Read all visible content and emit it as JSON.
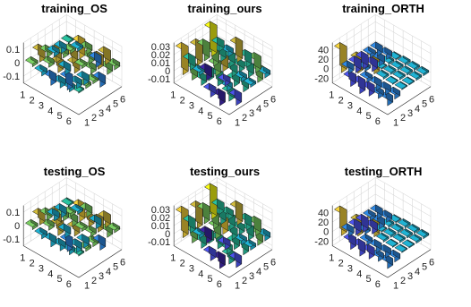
{
  "figure": {
    "rows": 2,
    "cols": 3
  },
  "colormap": [
    "#3e26a8",
    "#4d54f0",
    "#2e8ae6",
    "#1fb3d4",
    "#29c3a0",
    "#7bd063",
    "#d3bd3c",
    "#f6d33a",
    "#f9fb15"
  ],
  "chart_data": [
    {
      "type": "bar3",
      "title": "training_OS",
      "x_ticks": [
        "1",
        "2",
        "3",
        "4",
        "5",
        "6"
      ],
      "y_ticks": [
        "1",
        "2",
        "3",
        "4",
        "5",
        "6"
      ],
      "z_ticks": [
        "0.1",
        "0",
        "-0.1"
      ],
      "z_tick_values": [
        0.1,
        0,
        -0.1
      ],
      "zlim": [
        -0.15,
        0.15
      ],
      "matrix": [
        [
          0.02,
          0.08,
          0.04,
          -0.03,
          -0.04,
          0.01
        ],
        [
          -0.03,
          0.03,
          0.08,
          0.03,
          0.02,
          -0.02
        ],
        [
          -0.06,
          0.07,
          -0.05,
          0.06,
          0.12,
          0.04
        ],
        [
          -0.04,
          -0.09,
          0.07,
          0.02,
          0.05,
          -0.06
        ],
        [
          -0.03,
          -0.04,
          -0.05,
          0.04,
          0.08,
          0.08
        ],
        [
          0.01,
          0.02,
          0.02,
          -0.06,
          0.05,
          0.03
        ]
      ]
    },
    {
      "type": "bar3",
      "title": "training_ours",
      "x_ticks": [
        "1",
        "2",
        "3",
        "4",
        "5",
        "6"
      ],
      "y_ticks": [
        "1",
        "2",
        "3",
        "4",
        "5",
        "6"
      ],
      "z_ticks": [
        "0.03",
        "0.02",
        "0.01",
        "0",
        "-0.01"
      ],
      "z_tick_values": [
        0.03,
        0.02,
        0.01,
        0,
        -0.01
      ],
      "zlim": [
        -0.015,
        0.035
      ],
      "matrix": [
        [
          0.031,
          0.012,
          0.024,
          0.018,
          0.034,
          0.009
        ],
        [
          0.015,
          0.004,
          -0.012,
          0.016,
          0.012,
          0.006
        ],
        [
          0.008,
          0.011,
          0.014,
          0.025,
          0.012,
          0.022
        ],
        [
          -0.008,
          0.013,
          -0.006,
          0.009,
          0.008,
          0.013
        ],
        [
          -0.012,
          0.006,
          0.009,
          0.005,
          0.012,
          0.016
        ],
        [
          0.011,
          -0.011,
          0.012,
          0.003,
          0.016,
          0.005
        ]
      ]
    },
    {
      "type": "bar3",
      "title": "training_ORTH",
      "x_ticks": [
        "1",
        "2",
        "3",
        "4",
        "5",
        "6"
      ],
      "y_ticks": [
        "1",
        "2",
        "3",
        "4",
        "5",
        "6"
      ],
      "z_ticks": [
        "40",
        "20",
        "0",
        "-20"
      ],
      "z_tick_values": [
        40,
        20,
        0,
        -20
      ],
      "zlim": [
        -30,
        55
      ],
      "matrix": [
        [
          48,
          -12,
          -20,
          -22,
          -8,
          -14
        ],
        [
          -18,
          30,
          -6,
          -16,
          -14,
          -10
        ],
        [
          -22,
          -8,
          35,
          2,
          4,
          2
        ],
        [
          -16,
          -14,
          4,
          4,
          4,
          4
        ],
        [
          -10,
          -12,
          2,
          4,
          4,
          4
        ],
        [
          -14,
          -10,
          2,
          2,
          4,
          4
        ]
      ]
    },
    {
      "type": "bar3",
      "title": "testing_OS",
      "x_ticks": [
        "1",
        "2",
        "3",
        "4",
        "5",
        "6"
      ],
      "y_ticks": [
        "1",
        "2",
        "3",
        "4",
        "5",
        "6"
      ],
      "z_ticks": [
        "0.1",
        "0",
        "-0.1"
      ],
      "z_tick_values": [
        0.1,
        0,
        -0.1
      ],
      "zlim": [
        -0.15,
        0.15
      ],
      "matrix": [
        [
          0.02,
          0.07,
          0.04,
          -0.04,
          -0.05,
          0.01
        ],
        [
          -0.03,
          0.03,
          0.09,
          0.04,
          0.02,
          -0.02
        ],
        [
          -0.05,
          0.08,
          -0.05,
          0.05,
          0.11,
          0.05
        ],
        [
          -0.04,
          -0.08,
          0.06,
          0.02,
          0.06,
          -0.05
        ],
        [
          -0.03,
          -0.05,
          -0.05,
          0.03,
          0.08,
          0.07
        ],
        [
          0.01,
          0.02,
          0.03,
          -0.06,
          0.05,
          0.02
        ]
      ]
    },
    {
      "type": "bar3",
      "title": "testing_ours",
      "x_ticks": [
        "1",
        "2",
        "3",
        "4",
        "5",
        "6"
      ],
      "y_ticks": [
        "1",
        "2",
        "3",
        "4",
        "5",
        "6"
      ],
      "z_ticks": [
        "0.03",
        "0.02",
        "0.01",
        "0",
        "-0.01"
      ],
      "z_tick_values": [
        0.03,
        0.02,
        0.01,
        0,
        -0.01
      ],
      "zlim": [
        -0.015,
        0.035
      ],
      "matrix": [
        [
          0.03,
          0.013,
          0.025,
          0.017,
          0.035,
          0.01
        ],
        [
          0.014,
          0.004,
          -0.012,
          0.017,
          0.012,
          0.007
        ],
        [
          0.009,
          0.011,
          0.015,
          0.026,
          0.013,
          0.021
        ],
        [
          -0.009,
          0.012,
          -0.007,
          0.009,
          0.008,
          0.012
        ],
        [
          -0.012,
          0.007,
          0.009,
          0.005,
          0.013,
          0.015
        ],
        [
          0.011,
          -0.01,
          0.012,
          0.004,
          0.015,
          0.006
        ]
      ]
    },
    {
      "type": "bar3",
      "title": "testing_ORTH",
      "x_ticks": [
        "1",
        "2",
        "3",
        "4",
        "5",
        "6"
      ],
      "y_ticks": [
        "1",
        "2",
        "3",
        "4",
        "5",
        "6"
      ],
      "z_ticks": [
        "40",
        "20",
        "0",
        "-20"
      ],
      "z_tick_values": [
        40,
        20,
        0,
        -20
      ],
      "zlim": [
        -30,
        55
      ],
      "matrix": [
        [
          47,
          -12,
          -19,
          -22,
          -8,
          -14
        ],
        [
          -18,
          31,
          -6,
          -15,
          -14,
          -10
        ],
        [
          -21,
          -8,
          34,
          2,
          4,
          2
        ],
        [
          -16,
          -13,
          4,
          4,
          4,
          4
        ],
        [
          -10,
          -12,
          2,
          4,
          4,
          4
        ],
        [
          -14,
          -10,
          2,
          2,
          4,
          4
        ]
      ]
    }
  ]
}
